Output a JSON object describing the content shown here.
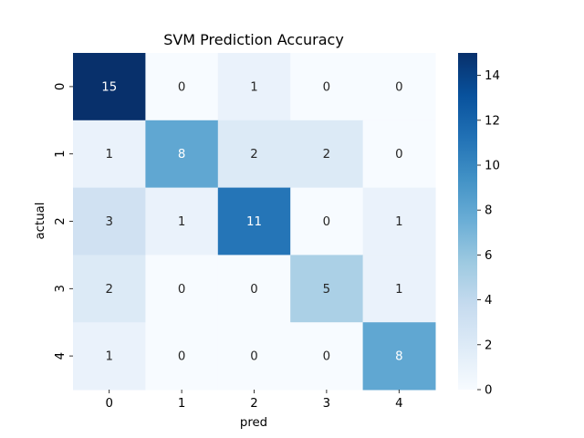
{
  "chart_data": {
    "type": "heatmap",
    "title": "SVM Prediction Accuracy",
    "xlabel": "pred",
    "ylabel": "actual",
    "x_categories": [
      "0",
      "1",
      "2",
      "3",
      "4"
    ],
    "y_categories": [
      "0",
      "1",
      "2",
      "3",
      "4"
    ],
    "values": [
      [
        15,
        0,
        1,
        0,
        0
      ],
      [
        1,
        8,
        2,
        2,
        0
      ],
      [
        3,
        1,
        11,
        0,
        1
      ],
      [
        2,
        0,
        0,
        5,
        1
      ],
      [
        1,
        0,
        0,
        0,
        8
      ]
    ],
    "colormap": "Blues",
    "vmin": 0,
    "vmax": 15,
    "annotated": true,
    "colorbar": {
      "ticks": [
        0,
        2,
        4,
        6,
        8,
        10,
        12,
        14
      ],
      "tick_labels": [
        "0",
        "2",
        "4",
        "6",
        "8",
        "10",
        "12",
        "14"
      ]
    }
  }
}
